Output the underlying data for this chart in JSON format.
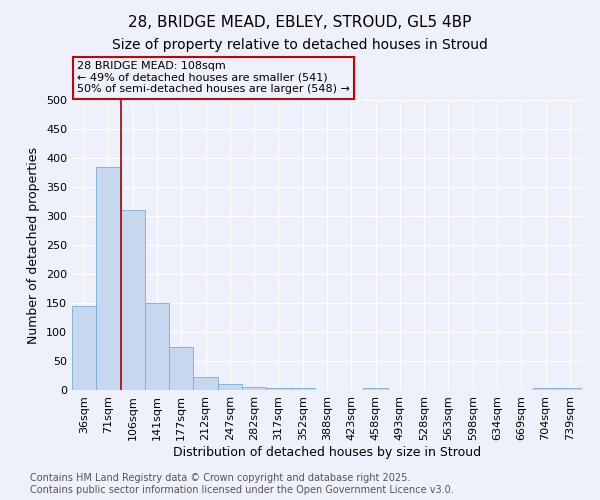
{
  "title": "28, BRIDGE MEAD, EBLEY, STROUD, GL5 4BP",
  "subtitle": "Size of property relative to detached houses in Stroud",
  "xlabel": "Distribution of detached houses by size in Stroud",
  "ylabel": "Number of detached properties",
  "categories": [
    "36sqm",
    "71sqm",
    "106sqm",
    "141sqm",
    "177sqm",
    "212sqm",
    "247sqm",
    "282sqm",
    "317sqm",
    "352sqm",
    "388sqm",
    "423sqm",
    "458sqm",
    "493sqm",
    "528sqm",
    "563sqm",
    "598sqm",
    "634sqm",
    "669sqm",
    "704sqm",
    "739sqm"
  ],
  "values": [
    145,
    385,
    310,
    150,
    75,
    22,
    10,
    5,
    3,
    3,
    0,
    0,
    3,
    0,
    0,
    0,
    0,
    0,
    0,
    3,
    3
  ],
  "bar_color": "#c5d8f0",
  "bar_edge_color": "#7aadd4",
  "vline_color": "#aa0000",
  "vline_x_index": 2,
  "annotation_text": "28 BRIDGE MEAD: 108sqm\n← 49% of detached houses are smaller (541)\n50% of semi-detached houses are larger (548) →",
  "annotation_box_color": "#cc0000",
  "ylim": [
    0,
    500
  ],
  "yticks": [
    0,
    50,
    100,
    150,
    200,
    250,
    300,
    350,
    400,
    450,
    500
  ],
  "background_color": "#eef1fb",
  "grid_color": "#ffffff",
  "footnote": "Contains HM Land Registry data © Crown copyright and database right 2025.\nContains public sector information licensed under the Open Government Licence v3.0.",
  "title_fontsize": 11,
  "subtitle_fontsize": 10,
  "axis_label_fontsize": 9,
  "tick_fontsize": 8,
  "annotation_fontsize": 8,
  "footnote_fontsize": 7
}
